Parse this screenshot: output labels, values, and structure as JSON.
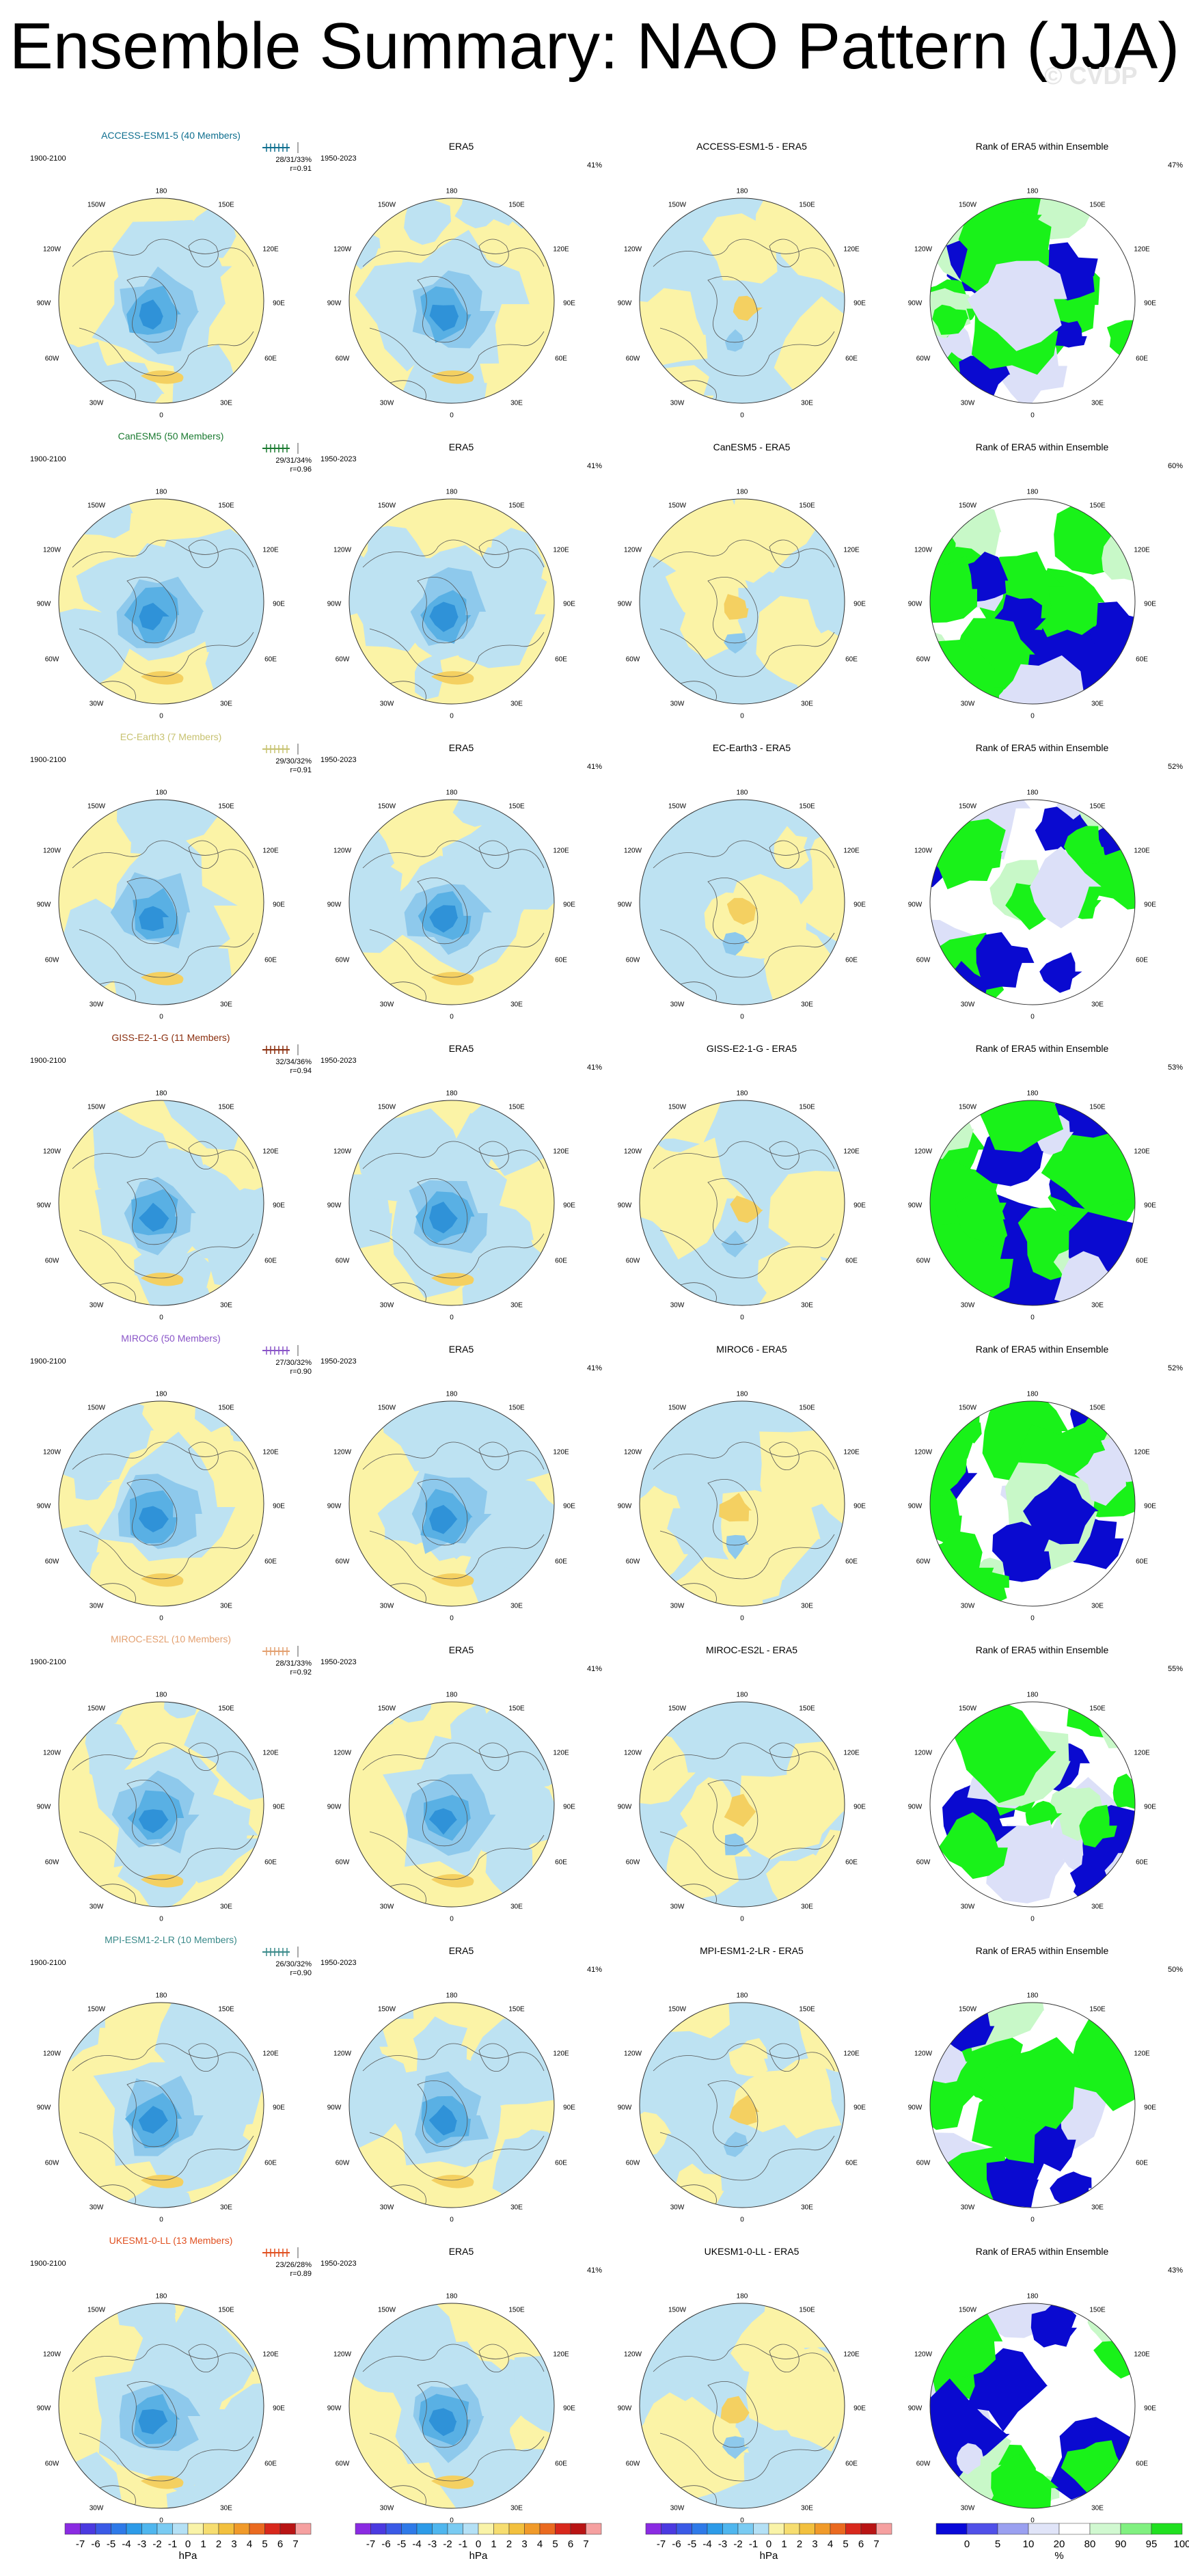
{
  "title": "Ensemble Summary: NAO Pattern (JJA)",
  "watermark": "© CVDP",
  "colors": {
    "positive": "#fbf3a6",
    "negative": "#bde2f2",
    "low1": "#8ec9ec",
    "low2": "#59b0e4",
    "low3": "#2f92d8",
    "high": "#f4d061",
    "high2": "#eeb748",
    "coast": "#555555",
    "rank_blue": "#0a0ad0",
    "rank_green": "#19f219",
    "rank_light": "#dce0f8",
    "rank_lightgreen": "#c8f8c8"
  },
  "rows": [
    {
      "model": "ACCESS-ESM1-5 (40 Members)",
      "model_color": "#0f6f8f",
      "years": "1900-2100",
      "stats": "28/31/33%",
      "r": "r=0.91",
      "diff": "ACCESS-ESM1-5 - ERA5",
      "rank_pct": "47%"
    },
    {
      "model": "CanESM5 (50 Members)",
      "model_color": "#1a7a30",
      "years": "1900-2100",
      "stats": "29/31/34%",
      "r": "r=0.96",
      "diff": "CanESM5 - ERA5",
      "rank_pct": "60%"
    },
    {
      "model": "EC-Earth3 (7 Members)",
      "model_color": "#c7c270",
      "years": "1900-2100",
      "stats": "29/30/32%",
      "r": "r=0.91",
      "diff": "EC-Earth3 - ERA5",
      "rank_pct": "52%"
    },
    {
      "model": "GISS-E2-1-G (11 Members)",
      "model_color": "#8a2e0e",
      "years": "1900-2100",
      "stats": "32/34/36%",
      "r": "r=0.94",
      "diff": "GISS-E2-1-G - ERA5",
      "rank_pct": "53%"
    },
    {
      "model": "MIROC6 (50 Members)",
      "model_color": "#8a55c8",
      "years": "1900-2100",
      "stats": "27/30/32%",
      "r": "r=0.90",
      "diff": "MIROC6 - ERA5",
      "rank_pct": "52%"
    },
    {
      "model": "MIROC-ES2L (10 Members)",
      "model_color": "#e3a070",
      "years": "1900-2100",
      "stats": "28/31/33%",
      "r": "r=0.92",
      "diff": "MIROC-ES2L - ERA5",
      "rank_pct": "55%"
    },
    {
      "model": "MPI-ESM1-2-LR (10 Members)",
      "model_color": "#3a8a8a",
      "years": "1900-2100",
      "stats": "26/30/32%",
      "r": "r=0.90",
      "diff": "MPI-ESM1-2-LR - ERA5",
      "rank_pct": "50%"
    },
    {
      "model": "UKESM1-0-LL (13 Members)",
      "model_color": "#e05020",
      "years": "1900-2100",
      "stats": "23/26/28%",
      "r": "r=0.89",
      "diff": "UKESM1-0-LL - ERA5",
      "rank_pct": "43%"
    }
  ],
  "era5": {
    "title": "ERA5",
    "years": "1950-2023",
    "pct": "41%"
  },
  "rank_title": "Rank of ERA5 within Ensemble",
  "map_labels": {
    "top": "180",
    "bottom": "0",
    "left": "90W",
    "right": "90E",
    "ul": "150W",
    "ur": "150E",
    "ul2": "120W",
    "ur2": "120E",
    "ll2": "60W",
    "lr2": "60E",
    "ll": "30W",
    "lr": "30E"
  },
  "colorbar_hpa": {
    "ticks": [
      "-7",
      "-6",
      "-5",
      "-4",
      "-3",
      "-2",
      "-1",
      "0",
      "1",
      "2",
      "3",
      "4",
      "5",
      "6",
      "7"
    ],
    "colors": [
      "#8a2be2",
      "#4b3ae0",
      "#3a5ae6",
      "#2f7ae8",
      "#2d9be8",
      "#4fb6ee",
      "#7acbf2",
      "#b4e0f5",
      "#f9f3a8",
      "#f6dd70",
      "#f2c03e",
      "#f09a2a",
      "#ea6a20",
      "#d8281c",
      "#b81414",
      "#f5a0a0"
    ],
    "unit": "hPa"
  },
  "colorbar_rank": {
    "ticks": [
      "0",
      "5",
      "10",
      "20",
      "80",
      "90",
      "95",
      "100"
    ],
    "colors": [
      "#0808d8",
      "#5050e8",
      "#9aa0f0",
      "#e0e4f8",
      "#ffffff",
      "#d0f8d0",
      "#80f080",
      "#20e020"
    ],
    "unit": "%"
  }
}
